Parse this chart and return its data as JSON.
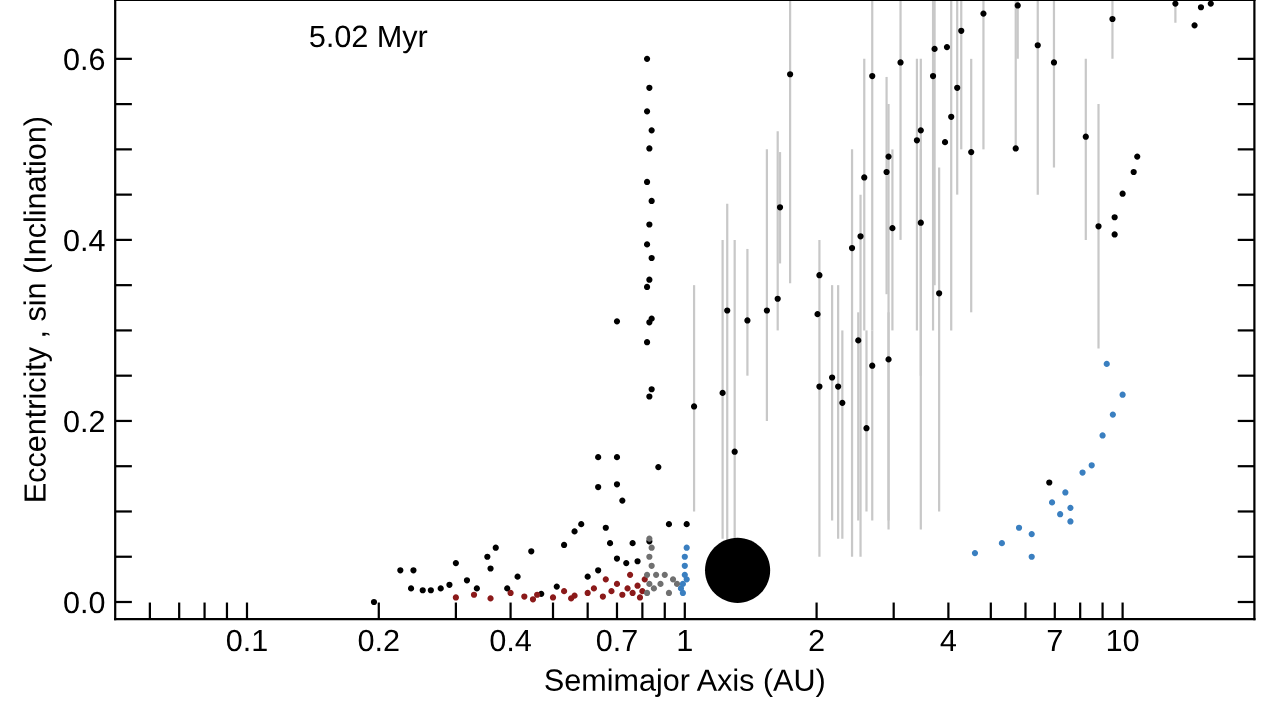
{
  "chart_data": {
    "type": "scatter",
    "xlabel": "Semimajor Axis (AU)",
    "ylabel": "Eccentricity , sin (Inclination)",
    "annotations": [
      "5.02 Myr"
    ],
    "log": "x",
    "marker": "circle",
    "xlim": [
      0.05,
      20
    ],
    "ylim": [
      -0.019,
      0.665
    ],
    "xticks": [
      {
        "value": 0.06,
        "label": null
      },
      {
        "value": 0.07,
        "label": null
      },
      {
        "value": 0.08,
        "label": null
      },
      {
        "value": 0.09,
        "label": null
      },
      0.1,
      0.2,
      {
        "value": 0.3,
        "label": null
      },
      0.4,
      {
        "value": 0.5,
        "label": null
      },
      {
        "value": 0.6,
        "label": null
      },
      0.7,
      {
        "value": 0.8,
        "label": null
      },
      {
        "value": 0.9,
        "label": null
      },
      1,
      2,
      {
        "value": 3,
        "label": null
      },
      4,
      {
        "value": 5,
        "label": null
      },
      {
        "value": 6,
        "label": null
      },
      7,
      {
        "value": 8,
        "label": null
      },
      {
        "value": 9,
        "label": null
      },
      10
    ],
    "yticks": [
      {
        "value": 0,
        "label": "0.0"
      },
      {
        "value": 0.05,
        "label": null
      },
      {
        "value": 0.1,
        "label": null
      },
      {
        "value": 0.15,
        "label": null
      },
      0.2,
      {
        "value": 0.25,
        "label": null
      },
      {
        "value": 0.3,
        "label": null
      },
      {
        "value": 0.35,
        "label": null
      },
      0.4,
      {
        "value": 0.45,
        "label": null
      },
      {
        "value": 0.5,
        "label": null
      },
      {
        "value": 0.55,
        "label": null
      },
      0.6
    ],
    "series": [
      {
        "color": "#000000",
        "x": [
          1.74,
          1.65,
          1.25,
          1.39,
          1.54,
          1.63,
          2.03,
          2.01,
          2.41,
          2.52,
          2.57,
          2.68,
          2.89,
          2.92,
          2.98,
          3.11,
          3.39,
          3.46,
          3.46,
          3.69,
          3.72,
          3.81,
          3.93,
          3.97,
          4.06,
          4.19,
          4.28,
          4.51,
          4.81,
          5.7,
          5.76,
          6.4,
          6.97,
          8.24,
          8.81,
          9.48,
          9.59,
          9.59,
          10.0,
          10.6,
          10.8,
          13.2,
          14.6,
          15.1,
          15.9,
          1.22,
          1.3,
          1.05,
          2.17,
          2.24,
          2.29,
          2.03,
          2.49,
          2.68,
          2.92,
          2.6,
          6.8
        ],
        "values": [
          0.583,
          0.436,
          0.322,
          0.311,
          0.322,
          0.335,
          0.361,
          0.318,
          0.391,
          0.404,
          0.469,
          0.581,
          0.475,
          0.492,
          0.413,
          0.596,
          0.51,
          0.521,
          0.419,
          0.581,
          0.611,
          0.341,
          0.508,
          0.613,
          0.536,
          0.568,
          0.631,
          0.497,
          0.65,
          0.501,
          0.659,
          0.615,
          0.596,
          0.514,
          0.415,
          0.644,
          0.406,
          0.425,
          0.451,
          0.475,
          0.492,
          0.661,
          0.637,
          0.657,
          0.661,
          0.231,
          0.166,
          0.216,
          0.248,
          0.238,
          0.22,
          0.238,
          0.289,
          0.261,
          0.268,
          0.192,
          0.132
        ],
        "errors": [
          [
            0.352,
            0.665
          ],
          [
            0.374,
            0.497
          ],
          [
            0.067,
            0.44
          ],
          [
            0.25,
            0.39
          ],
          [
            0.2,
            0.5
          ],
          [
            0.3,
            0.52
          ],
          [
            0.05,
            0.4
          ],
          null,
          [
            0.05,
            0.5
          ],
          [
            0.05,
            0.45
          ],
          [
            0.3,
            0.6
          ],
          [
            0.3,
            0.665
          ],
          [
            0.34,
            0.58
          ],
          [
            0.08,
            0.55
          ],
          [
            0.3,
            0.5
          ],
          [
            0.4,
            0.665
          ],
          [
            0.3,
            0.6
          ],
          [
            0.25,
            0.6
          ],
          [
            0.08,
            0.5
          ],
          [
            0.3,
            0.665
          ],
          [
            0.35,
            0.665
          ],
          [
            0.1,
            0.48
          ],
          null,
          null,
          [
            0.3,
            0.665
          ],
          [
            0.45,
            0.665
          ],
          [
            0.5,
            0.665
          ],
          [
            0.32,
            0.6
          ],
          [
            0.5,
            0.665
          ],
          [
            0.5,
            0.665
          ],
          [
            0.6,
            0.665
          ],
          [
            0.45,
            0.665
          ],
          [
            0.48,
            0.665
          ],
          [
            0.4,
            0.6
          ],
          [
            0.28,
            0.55
          ],
          [
            0.6,
            0.665
          ],
          null,
          null,
          null,
          null,
          null,
          [
            0.64,
            0.665
          ],
          null,
          null,
          null,
          [
            0.07,
            0.4
          ],
          [
            0.07,
            0.4
          ],
          [
            0.1,
            0.35
          ],
          [
            0.09,
            0.35
          ],
          [
            0.07,
            0.35
          ],
          [
            0.07,
            0.3
          ],
          null,
          [
            0.09,
            0.32
          ],
          [
            0.09,
            0.3
          ],
          [
            0.09,
            0.32
          ],
          [
            0.1,
            0.3
          ],
          null
        ]
      },
      {
        "color": "#000000",
        "x": [
          0.82,
          0.83,
          0.82,
          0.84,
          0.83,
          0.82,
          0.84,
          0.83,
          0.82,
          0.84,
          0.83,
          0.82,
          0.84,
          0.83,
          0.82,
          0.84,
          0.83,
          0.7,
          0.7,
          0.7,
          0.195,
          0.224,
          0.24,
          0.237,
          0.252,
          0.263,
          0.277,
          0.29,
          0.3,
          0.318,
          0.335,
          0.354,
          0.36,
          0.37,
          0.393,
          0.415,
          0.446,
          0.47,
          0.51,
          0.53,
          0.56,
          0.58,
          0.6,
          0.634,
          0.66,
          0.675,
          0.7,
          0.735,
          0.76,
          0.78,
          0.83,
          0.92,
          1.01,
          0.634,
          0.634,
          0.72,
          0.87
        ],
        "values": [
          0.6,
          0.568,
          0.542,
          0.521,
          0.501,
          0.464,
          0.443,
          0.417,
          0.395,
          0.38,
          0.356,
          0.348,
          0.313,
          0.309,
          0.287,
          0.235,
          0.227,
          0.31,
          0.16,
          0.13,
          0.0,
          0.035,
          0.035,
          0.015,
          0.013,
          0.013,
          0.015,
          0.019,
          0.043,
          0.024,
          0.015,
          0.05,
          0.037,
          0.06,
          0.015,
          0.028,
          0.056,
          0.009,
          0.017,
          0.063,
          0.078,
          0.086,
          0.028,
          0.035,
          0.082,
          0.065,
          0.048,
          0.043,
          0.065,
          0.045,
          0.067,
          0.086,
          0.086,
          0.16,
          0.127,
          0.112,
          0.149
        ]
      },
      {
        "color": "#8b1a1a",
        "x": [
          0.3,
          0.33,
          0.36,
          0.4,
          0.43,
          0.46,
          0.5,
          0.53,
          0.56,
          0.6,
          0.62,
          0.65,
          0.68,
          0.7,
          0.72,
          0.74,
          0.76,
          0.78,
          0.8,
          0.81,
          0.45,
          0.55,
          0.66,
          0.75,
          0.79
        ],
        "values": [
          0.005,
          0.008,
          0.004,
          0.01,
          0.006,
          0.008,
          0.005,
          0.012,
          0.007,
          0.01,
          0.015,
          0.006,
          0.012,
          0.02,
          0.008,
          0.015,
          0.01,
          0.018,
          0.012,
          0.025,
          0.003,
          0.004,
          0.025,
          0.03,
          0.005
        ]
      },
      {
        "color": "#707070",
        "x": [
          0.82,
          0.82,
          0.83,
          0.83,
          0.83,
          0.84,
          0.84,
          0.85,
          0.86,
          0.88,
          0.9,
          0.92,
          0.94,
          0.96
        ],
        "values": [
          0.01,
          0.03,
          0.05,
          0.07,
          0.02,
          0.04,
          0.06,
          0.015,
          0.03,
          0.02,
          0.03,
          0.01,
          0.025,
          0.02
        ]
      },
      {
        "color": "#3a7fc0",
        "x": [
          0.99,
          0.99,
          1.0,
          1.0,
          1.0,
          1.01,
          1.01,
          0.98,
          5.8,
          6.2,
          6.9,
          7.4,
          7.6,
          8.1,
          8.5,
          9.0,
          9.5,
          10.0,
          9.2,
          5.3,
          4.6,
          6.2,
          7.6,
          7.2
        ],
        "values": [
          0.01,
          0.02,
          0.03,
          0.04,
          0.05,
          0.06,
          0.025,
          0.015,
          0.082,
          0.075,
          0.11,
          0.121,
          0.104,
          0.143,
          0.151,
          0.184,
          0.207,
          0.229,
          0.263,
          0.065,
          0.054,
          0.05,
          0.089,
          0.097
        ]
      },
      {
        "type": "bubble",
        "color": "#000000",
        "x": [
          1.32
        ],
        "values": [
          0.035
        ],
        "sizes": [
          1
        ]
      }
    ]
  }
}
